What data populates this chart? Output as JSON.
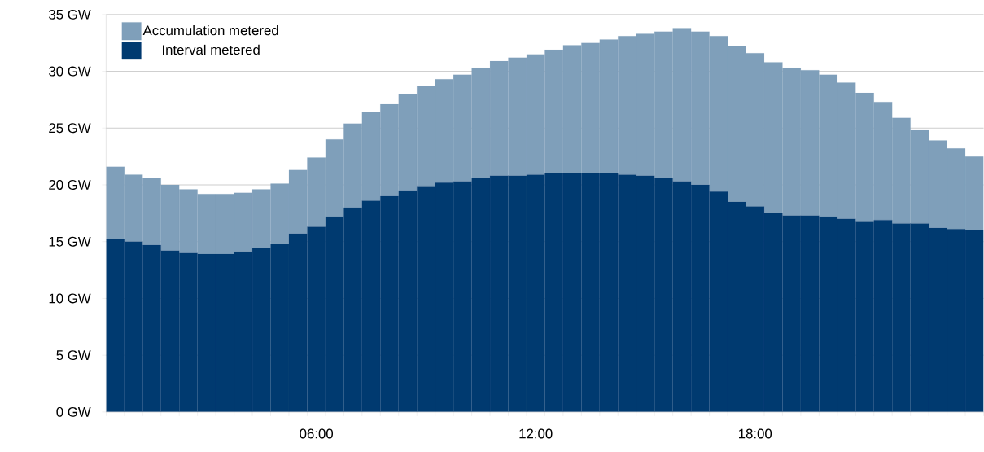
{
  "chart_data": {
    "type": "bar",
    "stacked": true,
    "categories": [
      null,
      null,
      null,
      null,
      null,
      null,
      null,
      null,
      null,
      null,
      null,
      "06:00",
      null,
      null,
      null,
      null,
      null,
      null,
      null,
      null,
      null,
      null,
      null,
      "12:00",
      null,
      null,
      null,
      null,
      null,
      null,
      null,
      null,
      null,
      null,
      null,
      "18:00",
      null,
      null,
      null,
      null,
      null,
      null,
      null,
      null,
      null,
      null,
      null,
      null
    ],
    "series": [
      {
        "name": "Interval metered",
        "color": "#003a70",
        "values": [
          15.2,
          15.0,
          14.7,
          14.2,
          14.0,
          13.9,
          13.9,
          14.1,
          14.4,
          14.8,
          15.7,
          16.3,
          17.2,
          18.0,
          18.6,
          19.0,
          19.5,
          19.9,
          20.2,
          20.3,
          20.6,
          20.8,
          20.8,
          20.9,
          21.0,
          21.0,
          21.0,
          21.0,
          20.9,
          20.8,
          20.6,
          20.3,
          20.0,
          19.4,
          18.5,
          18.1,
          17.5,
          17.3,
          17.3,
          17.2,
          17.0,
          16.8,
          16.9,
          16.6,
          16.6,
          16.2,
          16.1,
          16.0
        ]
      },
      {
        "name": "Accumulation metered",
        "color": "#7f9fba",
        "values": [
          6.4,
          5.9,
          5.9,
          5.8,
          5.6,
          5.3,
          5.3,
          5.2,
          5.2,
          5.3,
          5.6,
          6.1,
          6.8,
          7.4,
          7.8,
          8.1,
          8.5,
          8.8,
          9.1,
          9.4,
          9.7,
          10.1,
          10.4,
          10.6,
          10.9,
          11.3,
          11.5,
          11.8,
          12.2,
          12.5,
          12.9,
          13.5,
          13.5,
          13.7,
          13.7,
          13.5,
          13.3,
          13.0,
          12.8,
          12.5,
          12.0,
          11.3,
          10.4,
          9.3,
          8.2,
          7.7,
          7.1,
          6.5
        ]
      }
    ],
    "ylim": [
      0,
      35
    ],
    "yticks": [
      {
        "value": 0,
        "label": "0 GW"
      },
      {
        "value": 5,
        "label": "5 GW"
      },
      {
        "value": 10,
        "label": "10 GW"
      },
      {
        "value": 15,
        "label": "15 GW"
      },
      {
        "value": 20,
        "label": "20 GW"
      },
      {
        "value": 25,
        "label": "25 GW"
      },
      {
        "value": 30,
        "label": "30 GW"
      },
      {
        "value": 35,
        "label": "35 GW"
      }
    ],
    "grid": "y",
    "legend": "top left"
  }
}
